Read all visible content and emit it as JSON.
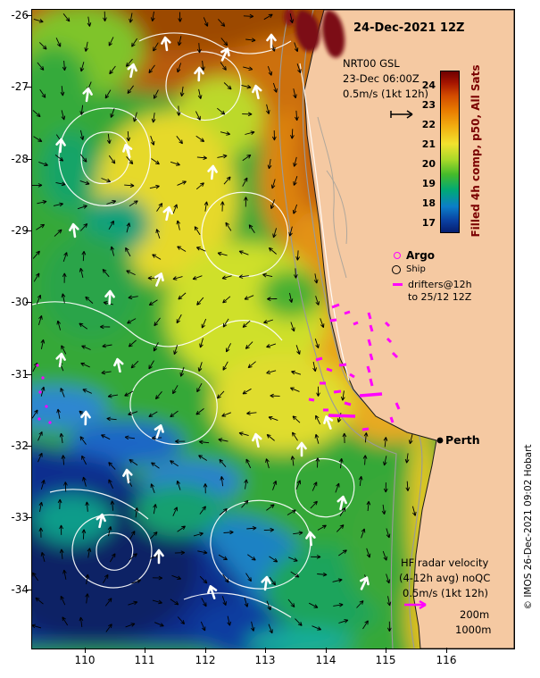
{
  "header": {
    "datetime": "24-Dec-2021 12Z"
  },
  "product": {
    "name": "NRT00 GSL",
    "time": "23-Dec 06:00Z",
    "scale": "0.5m/s (1kt 12h)"
  },
  "colorbar": {
    "label": "Filled 4h comp, p50, All Sats",
    "ticks": [
      "24",
      "23",
      "22",
      "21",
      "20",
      "19",
      "18",
      "17"
    ],
    "top_color": "#6e0000",
    "bottom_color": "#061f70"
  },
  "legend": {
    "argo_label": "Argo",
    "ship_label": "Ship",
    "drifters_line1": "drifters@12h",
    "drifters_line2": "to 25/12 12Z"
  },
  "hf_radar": {
    "line1": "HF radar velocity",
    "line2": "(4-12h avg) noQC",
    "line3": "0.5m/s (1kt 12h)",
    "isobath_shallow": "200m",
    "isobath_deep": "1000m"
  },
  "city": {
    "name": "Perth"
  },
  "copyright": "© IMOS 26-Dec-2021 09:02 Hobart",
  "axes": {
    "x_ticks": [
      "110",
      "111",
      "112",
      "113",
      "114",
      "115",
      "116"
    ],
    "y_ticks": [
      "-26",
      "-27",
      "-28",
      "-29",
      "-30",
      "-31",
      "-32",
      "-33",
      "-34"
    ]
  },
  "colors": {
    "drifter_magenta": "#ff00ff",
    "land": "#f5c9a2",
    "colorbar_label": "#7a0000"
  }
}
